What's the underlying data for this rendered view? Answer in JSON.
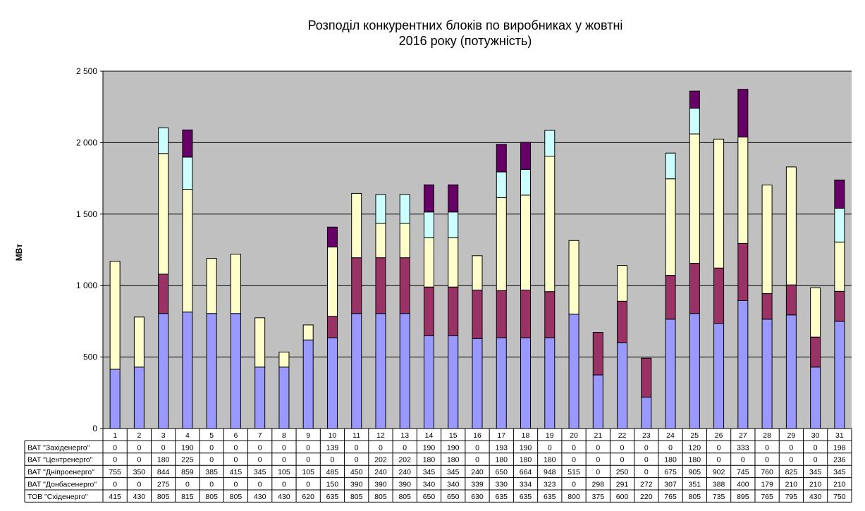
{
  "chart_data": {
    "type": "bar",
    "stacked": true,
    "title_line1": "Розподіл конкурентних блоків по виробниках у жовтні",
    "title_line2": "2016 року (потужність)",
    "ylabel": "МВт",
    "ylim": [
      0,
      2500
    ],
    "yticks": [
      0,
      500,
      1000,
      1500,
      2000,
      2500
    ],
    "ytick_labels": [
      "0",
      "500",
      "1 000",
      "1 500",
      "2 000",
      "2 500"
    ],
    "grid": true,
    "plot_background": "#c0c0c0",
    "categories": [
      "1",
      "2",
      "3",
      "4",
      "5",
      "6",
      "7",
      "8",
      "9",
      "10",
      "11",
      "12",
      "13",
      "14",
      "15",
      "16",
      "17",
      "18",
      "19",
      "20",
      "21",
      "22",
      "23",
      "24",
      "25",
      "26",
      "27",
      "28",
      "29",
      "30",
      "31"
    ],
    "series_stack_order": [
      {
        "name": "ТОВ \"Східенерго\"",
        "color": "#9999ff",
        "values": [
          415,
          430,
          805,
          815,
          805,
          805,
          430,
          430,
          620,
          635,
          805,
          805,
          805,
          650,
          650,
          630,
          635,
          635,
          635,
          800,
          375,
          600,
          220,
          765,
          805,
          735,
          895,
          765,
          795,
          430,
          750
        ]
      },
      {
        "name": "ВАТ \"Донбасенерго\"",
        "color": "#993366",
        "values": [
          0,
          0,
          275,
          0,
          0,
          0,
          0,
          0,
          0,
          150,
          390,
          390,
          390,
          340,
          340,
          339,
          330,
          334,
          323,
          0,
          298,
          291,
          272,
          307,
          351,
          388,
          400,
          179,
          210,
          210,
          210
        ]
      },
      {
        "name": "ВАТ \"Дніпроенерго\"",
        "color": "#ffffcc",
        "values": [
          755,
          350,
          844,
          859,
          385,
          415,
          345,
          105,
          105,
          485,
          450,
          240,
          240,
          345,
          345,
          240,
          650,
          664,
          948,
          515,
          0,
          250,
          0,
          675,
          905,
          902,
          745,
          760,
          825,
          345,
          345
        ]
      },
      {
        "name": "ВАТ \"Центренерго\"",
        "color": "#ccffff",
        "values": [
          0,
          0,
          180,
          225,
          0,
          0,
          0,
          0,
          0,
          0,
          0,
          202,
          202,
          180,
          180,
          0,
          180,
          180,
          180,
          0,
          0,
          0,
          0,
          180,
          180,
          0,
          0,
          0,
          0,
          0,
          236
        ]
      },
      {
        "name": "ВАТ \"Західенерго\"",
        "color": "#660066",
        "values": [
          0,
          0,
          0,
          190,
          0,
          0,
          0,
          0,
          0,
          139,
          0,
          0,
          0,
          190,
          190,
          0,
          193,
          190,
          0,
          0,
          0,
          0,
          0,
          0,
          120,
          0,
          333,
          0,
          0,
          0,
          198
        ]
      }
    ],
    "table_row_order": [
      "ВАТ \"Західенерго\"",
      "ВАТ \"Центренерго\"",
      "ВАТ \"Дніпроенерго\"",
      "ВАТ \"Донбасенерго\"",
      "ТОВ \"Східенерго\""
    ]
  }
}
